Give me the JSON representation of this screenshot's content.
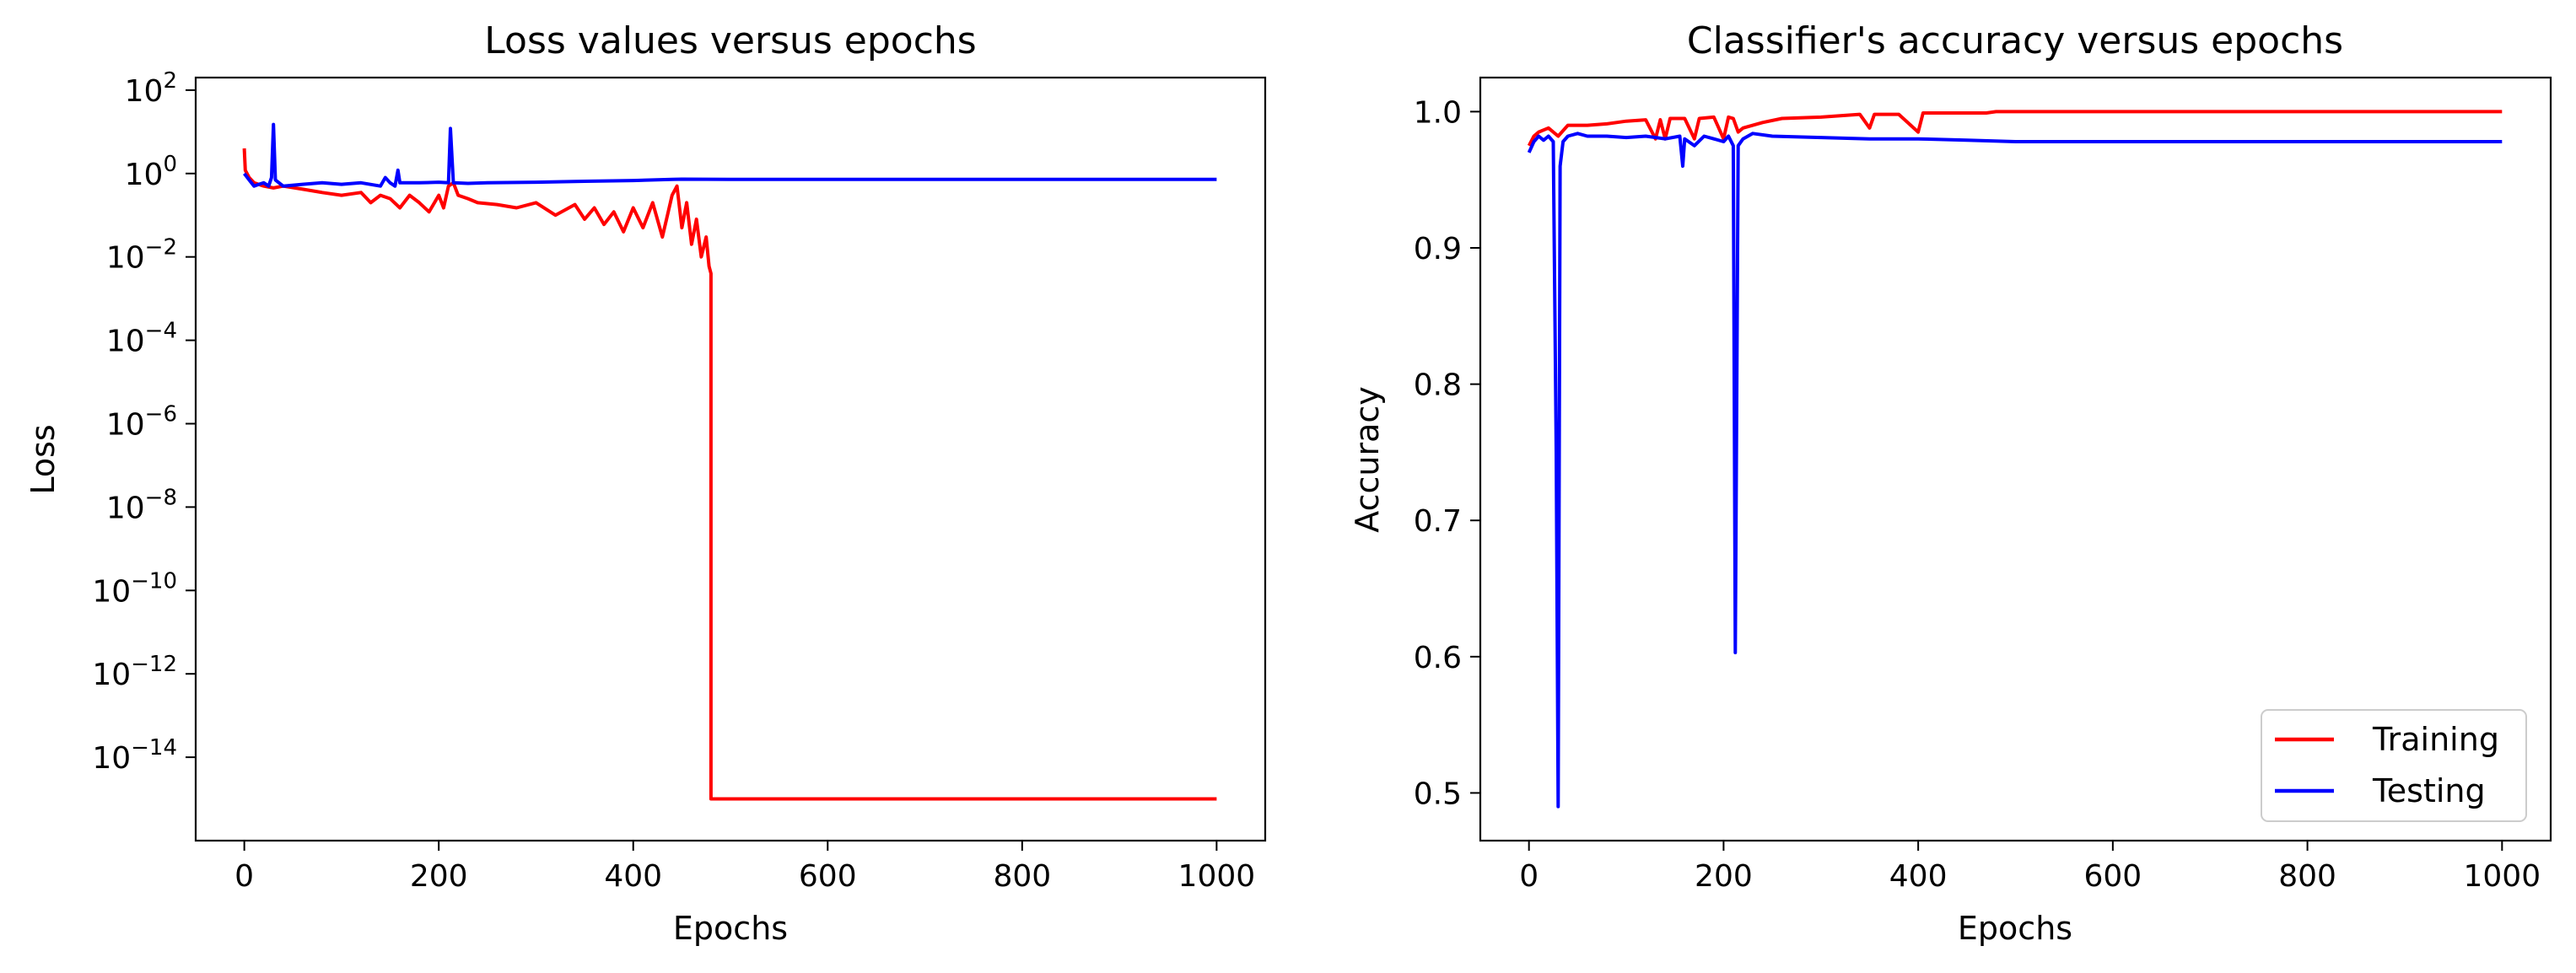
{
  "chart_data": [
    {
      "type": "line",
      "title": "Loss values versus epochs",
      "xlabel": "Epochs",
      "ylabel": "Loss",
      "xlim": [
        -50,
        1050
      ],
      "ylim": [
        1e-16,
        200
      ],
      "yscale": "log",
      "xticks": [
        0,
        200,
        400,
        600,
        800,
        1000
      ],
      "xtick_labels": [
        "0",
        "200",
        "400",
        "600",
        "800",
        "1000"
      ],
      "yticks": [
        {
          "value": 100.0,
          "base": "10",
          "exp": "2"
        },
        {
          "value": 1.0,
          "base": "10",
          "exp": "0"
        },
        {
          "value": 0.01,
          "base": "10",
          "exp": "−2"
        },
        {
          "value": 0.0001,
          "base": "10",
          "exp": "−4"
        },
        {
          "value": 1e-06,
          "base": "10",
          "exp": "−6"
        },
        {
          "value": 1e-08,
          "base": "10",
          "exp": "−8"
        },
        {
          "value": 1e-10,
          "base": "10",
          "exp": "−10"
        },
        {
          "value": 1e-12,
          "base": "10",
          "exp": "−12"
        },
        {
          "value": 1e-14,
          "base": "10",
          "exp": "−14"
        }
      ],
      "grid": false,
      "series": [
        {
          "color": "#ff0000",
          "points": [
            [
              0,
              4
            ],
            [
              1,
              1.2
            ],
            [
              5,
              0.8
            ],
            [
              10,
              0.6
            ],
            [
              20,
              0.5
            ],
            [
              30,
              0.45
            ],
            [
              40,
              0.5
            ],
            [
              60,
              0.42
            ],
            [
              80,
              0.35
            ],
            [
              100,
              0.3
            ],
            [
              120,
              0.35
            ],
            [
              130,
              0.2
            ],
            [
              140,
              0.3
            ],
            [
              150,
              0.25
            ],
            [
              160,
              0.15
            ],
            [
              170,
              0.3
            ],
            [
              180,
              0.2
            ],
            [
              190,
              0.12
            ],
            [
              200,
              0.3
            ],
            [
              205,
              0.15
            ],
            [
              210,
              0.5
            ],
            [
              215,
              0.6
            ],
            [
              220,
              0.3
            ],
            [
              230,
              0.25
            ],
            [
              240,
              0.2
            ],
            [
              260,
              0.18
            ],
            [
              280,
              0.15
            ],
            [
              300,
              0.2
            ],
            [
              320,
              0.1
            ],
            [
              340,
              0.18
            ],
            [
              350,
              0.08
            ],
            [
              360,
              0.15
            ],
            [
              370,
              0.06
            ],
            [
              380,
              0.12
            ],
            [
              390,
              0.04
            ],
            [
              400,
              0.15
            ],
            [
              410,
              0.05
            ],
            [
              420,
              0.2
            ],
            [
              430,
              0.03
            ],
            [
              440,
              0.3
            ],
            [
              445,
              0.5
            ],
            [
              450,
              0.05
            ],
            [
              455,
              0.2
            ],
            [
              460,
              0.02
            ],
            [
              465,
              0.08
            ],
            [
              470,
              0.01
            ],
            [
              475,
              0.03
            ],
            [
              478,
              0.006
            ],
            [
              480,
              0.004
            ],
            [
              480,
              1e-15
            ],
            [
              1000,
              1e-15
            ]
          ]
        },
        {
          "color": "#0000ff",
          "points": [
            [
              0,
              1
            ],
            [
              5,
              0.7
            ],
            [
              10,
              0.5
            ],
            [
              15,
              0.55
            ],
            [
              20,
              0.6
            ],
            [
              25,
              0.5
            ],
            [
              28,
              0.8
            ],
            [
              30,
              15
            ],
            [
              32,
              0.7
            ],
            [
              40,
              0.5
            ],
            [
              60,
              0.55
            ],
            [
              80,
              0.6
            ],
            [
              100,
              0.55
            ],
            [
              120,
              0.6
            ],
            [
              140,
              0.5
            ],
            [
              145,
              0.8
            ],
            [
              150,
              0.6
            ],
            [
              155,
              0.5
            ],
            [
              158,
              1.2
            ],
            [
              160,
              0.6
            ],
            [
              180,
              0.6
            ],
            [
              200,
              0.62
            ],
            [
              210,
              0.6
            ],
            [
              212,
              12
            ],
            [
              215,
              0.6
            ],
            [
              230,
              0.58
            ],
            [
              250,
              0.6
            ],
            [
              300,
              0.62
            ],
            [
              350,
              0.65
            ],
            [
              400,
              0.68
            ],
            [
              440,
              0.72
            ],
            [
              450,
              0.73
            ],
            [
              500,
              0.72
            ],
            [
              600,
              0.72
            ],
            [
              700,
              0.72
            ],
            [
              800,
              0.72
            ],
            [
              900,
              0.72
            ],
            [
              1000,
              0.72
            ]
          ]
        }
      ]
    },
    {
      "type": "line",
      "title": "Classifier's accuracy versus epochs",
      "xlabel": "Epochs",
      "ylabel": "Accuracy",
      "xlim": [
        -50,
        1050
      ],
      "ylim": [
        0.465,
        1.025
      ],
      "xticks": [
        0,
        200,
        400,
        600,
        800,
        1000
      ],
      "xtick_labels": [
        "0",
        "200",
        "400",
        "600",
        "800",
        "1000"
      ],
      "yticks": [
        0.5,
        0.6,
        0.7,
        0.8,
        0.9,
        1.0
      ],
      "ytick_labels": [
        "0.5",
        "0.6",
        "0.7",
        "0.8",
        "0.9",
        "1.0"
      ],
      "grid": false,
      "legend_position": "lower-right",
      "series": [
        {
          "name": "Training",
          "color": "#ff0000",
          "points": [
            [
              0,
              0.975
            ],
            [
              5,
              0.982
            ],
            [
              10,
              0.985
            ],
            [
              20,
              0.988
            ],
            [
              30,
              0.982
            ],
            [
              40,
              0.99
            ],
            [
              60,
              0.99
            ],
            [
              80,
              0.991
            ],
            [
              100,
              0.993
            ],
            [
              120,
              0.994
            ],
            [
              130,
              0.98
            ],
            [
              135,
              0.994
            ],
            [
              140,
              0.98
            ],
            [
              145,
              0.995
            ],
            [
              160,
              0.995
            ],
            [
              170,
              0.98
            ],
            [
              175,
              0.995
            ],
            [
              190,
              0.996
            ],
            [
              200,
              0.98
            ],
            [
              205,
              0.996
            ],
            [
              210,
              0.995
            ],
            [
              215,
              0.985
            ],
            [
              220,
              0.988
            ],
            [
              240,
              0.992
            ],
            [
              260,
              0.995
            ],
            [
              300,
              0.996
            ],
            [
              340,
              0.998
            ],
            [
              350,
              0.988
            ],
            [
              355,
              0.998
            ],
            [
              380,
              0.998
            ],
            [
              400,
              0.985
            ],
            [
              405,
              0.999
            ],
            [
              440,
              0.999
            ],
            [
              470,
              0.999
            ],
            [
              480,
              1.0
            ],
            [
              1000,
              1.0
            ]
          ]
        },
        {
          "name": "Testing",
          "color": "#0000ff",
          "points": [
            [
              0,
              0.97
            ],
            [
              5,
              0.978
            ],
            [
              10,
              0.982
            ],
            [
              15,
              0.979
            ],
            [
              20,
              0.982
            ],
            [
              25,
              0.978
            ],
            [
              28,
              0.75
            ],
            [
              30,
              0.49
            ],
            [
              32,
              0.96
            ],
            [
              35,
              0.978
            ],
            [
              40,
              0.982
            ],
            [
              50,
              0.984
            ],
            [
              60,
              0.982
            ],
            [
              80,
              0.982
            ],
            [
              100,
              0.981
            ],
            [
              120,
              0.982
            ],
            [
              140,
              0.98
            ],
            [
              155,
              0.982
            ],
            [
              158,
              0.96
            ],
            [
              160,
              0.98
            ],
            [
              170,
              0.975
            ],
            [
              180,
              0.982
            ],
            [
              190,
              0.98
            ],
            [
              200,
              0.978
            ],
            [
              205,
              0.982
            ],
            [
              210,
              0.975
            ],
            [
              212,
              0.603
            ],
            [
              215,
              0.975
            ],
            [
              220,
              0.98
            ],
            [
              230,
              0.984
            ],
            [
              250,
              0.982
            ],
            [
              300,
              0.981
            ],
            [
              350,
              0.98
            ],
            [
              400,
              0.98
            ],
            [
              450,
              0.979
            ],
            [
              500,
              0.978
            ],
            [
              600,
              0.978
            ],
            [
              700,
              0.978
            ],
            [
              800,
              0.978
            ],
            [
              900,
              0.978
            ],
            [
              1000,
              0.978
            ]
          ]
        }
      ]
    }
  ]
}
